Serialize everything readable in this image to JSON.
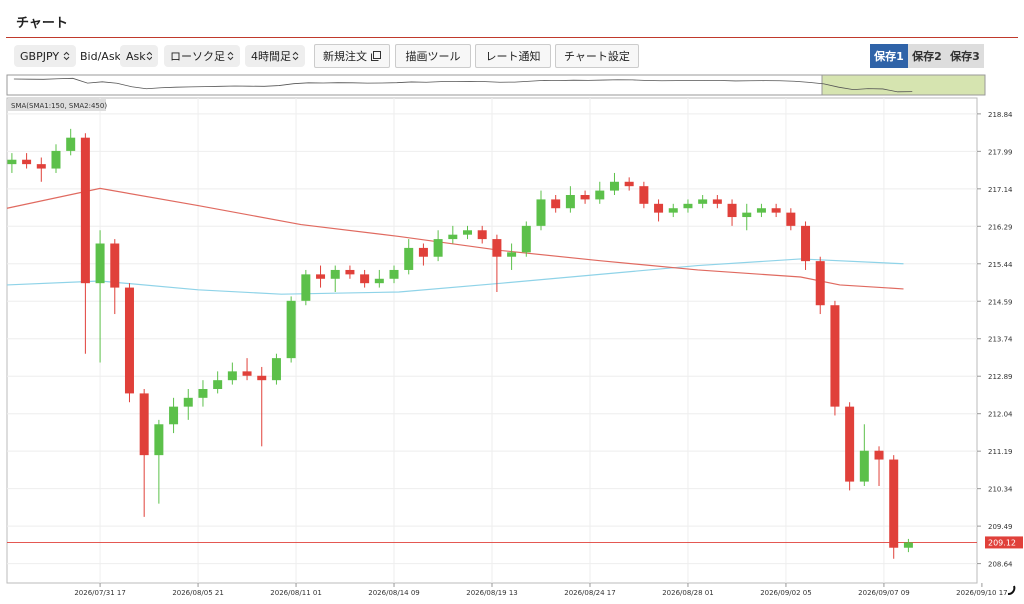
{
  "header": {
    "title": "チャート"
  },
  "toolbar": {
    "symbol": "GBPJPY",
    "price_type_label": "Bid/Ask",
    "price_type": "Ask",
    "chart_style": "ローソク足",
    "timeframe": "4時間足",
    "buttons": [
      "新規注文",
      "描画ツール",
      "レート通知",
      "チャート設定"
    ],
    "saves": [
      "保存1",
      "保存2",
      "保存3"
    ]
  },
  "chart_data": {
    "type": "candlestick",
    "indicator_label": "SMA(SMA1:150, SMA2:450)",
    "x": [
      1,
      4,
      7,
      10,
      13,
      16,
      19,
      22,
      25,
      28,
      31,
      34,
      37,
      40,
      43,
      46,
      49,
      52,
      55,
      58,
      61,
      64,
      67,
      70,
      73,
      76,
      79,
      82,
      85,
      88,
      91,
      94,
      97,
      100,
      103,
      106,
      109,
      112,
      115,
      118,
      121,
      124,
      127,
      130,
      133,
      136,
      139,
      142,
      145,
      148,
      151,
      154,
      157,
      160,
      163,
      166,
      169,
      172,
      175,
      178,
      181,
      184
    ],
    "open": [
      217.7,
      217.8,
      217.7,
      217.6,
      218.0,
      218.3,
      215.0,
      215.9,
      214.9,
      212.5,
      211.1,
      211.8,
      212.2,
      212.4,
      212.6,
      212.8,
      213.0,
      212.9,
      212.8,
      213.3,
      214.6,
      215.2,
      215.1,
      215.3,
      215.2,
      215.0,
      215.1,
      215.3,
      215.8,
      215.6,
      216.0,
      216.1,
      216.2,
      216.0,
      215.6,
      215.7,
      216.3,
      216.9,
      216.7,
      217.0,
      216.9,
      217.1,
      217.3,
      217.2,
      216.8,
      216.6,
      216.7,
      216.8,
      216.9,
      216.8,
      216.5,
      216.6,
      216.7,
      216.6,
      216.3,
      215.5,
      214.5,
      212.2,
      210.5,
      211.2,
      211.0,
      209.0
    ],
    "high": [
      217.95,
      217.95,
      217.85,
      218.15,
      218.5,
      218.4,
      216.2,
      216.0,
      215.0,
      212.6,
      211.9,
      212.4,
      212.6,
      212.8,
      213.0,
      213.2,
      213.3,
      213.1,
      213.4,
      214.7,
      215.3,
      215.4,
      215.4,
      215.4,
      215.3,
      215.3,
      215.4,
      216.0,
      215.9,
      216.2,
      216.3,
      216.3,
      216.3,
      216.1,
      215.9,
      216.4,
      217.1,
      217.0,
      217.2,
      217.1,
      217.3,
      217.5,
      217.4,
      217.3,
      216.9,
      216.8,
      216.9,
      217.0,
      217.0,
      216.9,
      216.8,
      216.8,
      216.8,
      216.7,
      216.4,
      215.6,
      214.6,
      212.3,
      211.8,
      211.3,
      211.1,
      209.2
    ],
    "low": [
      217.5,
      217.6,
      217.3,
      217.5,
      217.9,
      213.4,
      213.2,
      214.3,
      212.3,
      209.7,
      210.0,
      211.6,
      211.9,
      212.2,
      212.5,
      212.7,
      212.8,
      211.3,
      212.7,
      213.2,
      214.5,
      214.9,
      214.8,
      215.1,
      214.9,
      214.9,
      215.0,
      215.2,
      215.4,
      215.5,
      215.9,
      216.0,
      215.9,
      214.8,
      215.3,
      215.6,
      216.2,
      216.6,
      216.6,
      216.8,
      216.8,
      217.0,
      217.1,
      216.7,
      216.4,
      216.5,
      216.6,
      216.7,
      216.7,
      216.3,
      216.2,
      216.5,
      216.5,
      216.2,
      215.3,
      214.3,
      212.0,
      210.3,
      210.4,
      210.4,
      208.75,
      208.9
    ],
    "close": [
      217.8,
      217.7,
      217.6,
      218.0,
      218.3,
      215.0,
      215.9,
      214.9,
      212.5,
      211.1,
      211.8,
      212.2,
      212.4,
      212.6,
      212.8,
      213.0,
      212.9,
      212.8,
      213.3,
      214.6,
      215.2,
      215.1,
      215.3,
      215.2,
      215.0,
      215.1,
      215.3,
      215.8,
      215.6,
      216.0,
      216.1,
      216.2,
      216.0,
      215.6,
      215.7,
      216.3,
      216.9,
      216.7,
      217.0,
      216.9,
      217.1,
      217.3,
      217.2,
      216.8,
      216.6,
      216.7,
      216.8,
      216.9,
      216.8,
      216.5,
      216.6,
      216.7,
      216.6,
      216.3,
      215.5,
      214.5,
      212.2,
      210.5,
      211.2,
      211.0,
      209.0,
      209.12
    ],
    "up_color": "#5cc04a",
    "down_color": "#e0403a",
    "series": [
      {
        "color": "#8fd3e8",
        "x": [
          0,
          19,
          39,
          56,
          80,
          101,
          121,
          141,
          162,
          183
        ],
        "values": [
          214.96,
          215.05,
          214.85,
          214.75,
          214.8,
          215.0,
          215.2,
          215.4,
          215.55,
          215.44
        ]
      },
      {
        "color": "#e06a60",
        "x": [
          0,
          19,
          39,
          60,
          80,
          101,
          121,
          141,
          162,
          170,
          183
        ],
        "values": [
          216.7,
          217.15,
          216.76,
          216.33,
          216.06,
          215.74,
          215.51,
          215.3,
          215.14,
          214.96,
          214.87
        ]
      }
    ],
    "price_line_color": "#e0403a",
    "xlim": [
      0,
      198
    ],
    "xticks": [
      {
        "value": 19,
        "label": "2026/07/31 17"
      },
      {
        "value": 39,
        "label": "2026/08/05 21"
      },
      {
        "value": 59,
        "label": "2026/08/11 01"
      },
      {
        "value": 79,
        "label": "2026/08/14 09"
      },
      {
        "value": 99,
        "label": "2026/08/19 13"
      },
      {
        "value": 119,
        "label": "2026/08/24 17"
      },
      {
        "value": 139,
        "label": "2026/08/28 01"
      },
      {
        "value": 159,
        "label": "2026/09/02 05"
      },
      {
        "value": 179,
        "label": "2026/09/07 09"
      },
      {
        "value": 199,
        "label": "2026/09/10 17"
      }
    ],
    "ylim": [
      208.2,
      219.2
    ],
    "yticks": [
      218.84,
      217.99,
      217.14,
      216.29,
      215.44,
      214.59,
      213.74,
      212.89,
      212.04,
      211.19,
      210.34,
      209.49,
      208.64
    ],
    "grid": true
  }
}
